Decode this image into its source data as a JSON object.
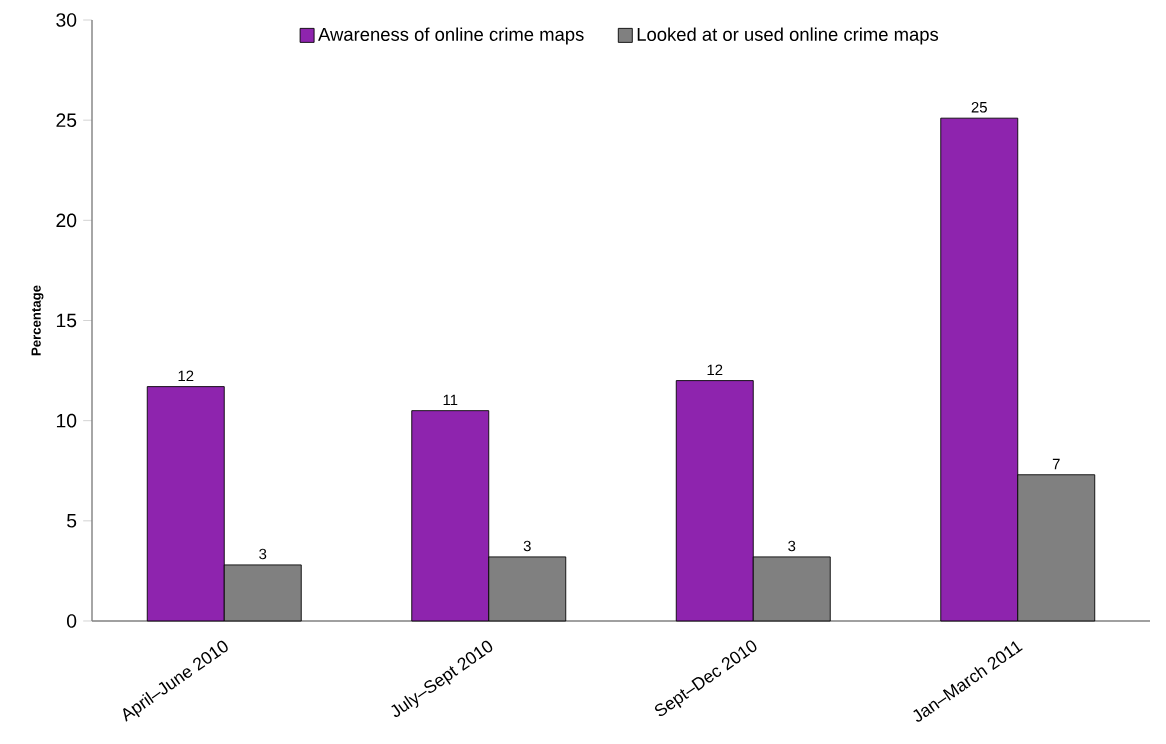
{
  "chart_data": {
    "type": "bar",
    "ylabel": "Percentage",
    "categories": [
      "April–June 2010",
      "July–Sept 2010",
      "Sept–Dec 2010",
      "Jan–March 2011"
    ],
    "series": [
      {
        "name": "Awareness of online crime maps",
        "color": "#8e24ae",
        "values": [
          11.7,
          10.5,
          12.0,
          25.1
        ],
        "value_labels": [
          "12",
          "11",
          "12",
          "25"
        ]
      },
      {
        "name": "Looked at or used online crime maps",
        "color": "#808080",
        "values": [
          2.8,
          3.2,
          3.2,
          7.3
        ],
        "value_labels": [
          "3",
          "3",
          "3",
          "7"
        ]
      }
    ],
    "ylim": [
      0,
      30
    ],
    "yticks": [
      0,
      5,
      10,
      15,
      20,
      25,
      30
    ],
    "grid": false,
    "legend": "top"
  }
}
